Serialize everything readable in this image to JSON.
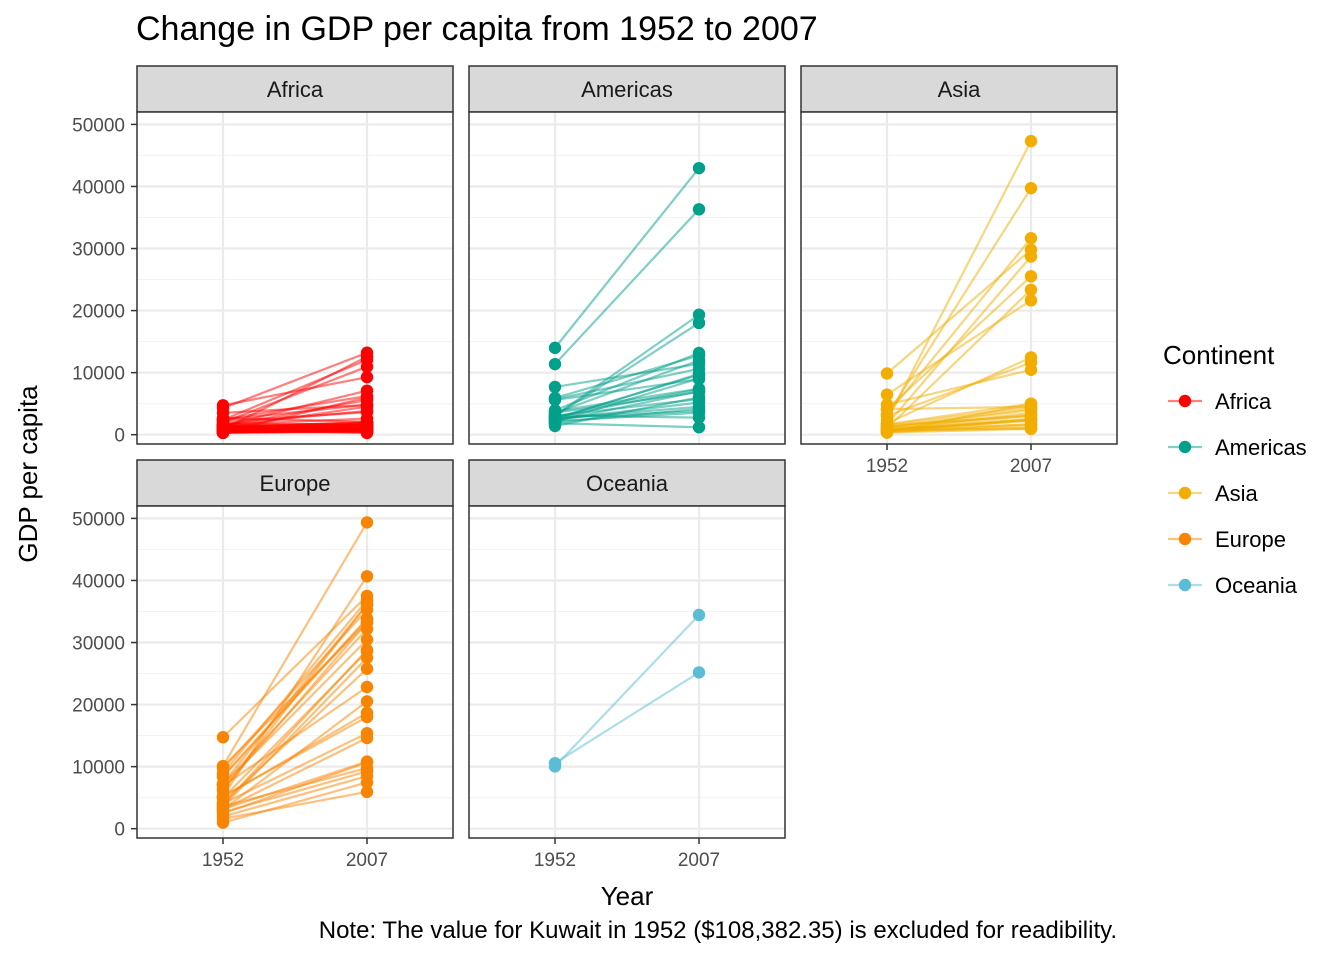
{
  "chart_data": {
    "type": "line",
    "title": "Change in GDP per capita from 1952 to 2007",
    "xlabel": "Year",
    "ylabel": "GDP per capita",
    "caption": "Note: The value for Kuwait in 1952 ($108,382.35) is excluded for readibility.",
    "x_categories": [
      "1952",
      "2007"
    ],
    "ylim": [
      -1500,
      52000
    ],
    "y_ticks": [
      0,
      10000,
      20000,
      30000,
      40000,
      50000
    ],
    "grid": true,
    "legend": {
      "title": "Continent",
      "placement": "right",
      "items": [
        {
          "name": "Africa",
          "color": "#FF0000"
        },
        {
          "name": "Americas",
          "color": "#00A08A"
        },
        {
          "name": "Asia",
          "color": "#F2AD00"
        },
        {
          "name": "Europe",
          "color": "#F98400"
        },
        {
          "name": "Oceania",
          "color": "#5BBCD6"
        }
      ]
    },
    "panels": [
      {
        "name": "Africa",
        "color": "#FF0000",
        "pairs": [
          [
            2449,
            6223
          ],
          [
            3521,
            4797
          ],
          [
            1063,
            1441
          ],
          [
            851,
            12570
          ],
          [
            543,
            1217
          ],
          [
            339,
            430
          ],
          [
            1173,
            2042
          ],
          [
            1071,
            706
          ],
          [
            1179,
            1704
          ],
          [
            1103,
            986
          ],
          [
            781,
            277
          ],
          [
            2126,
            3633
          ],
          [
            1388,
            1545
          ],
          [
            2670,
            2082
          ],
          [
            1419,
            5581
          ],
          [
            375,
            641
          ],
          [
            328,
            690
          ],
          [
            362,
            691
          ],
          [
            4293,
            13206
          ],
          [
            485,
            753
          ],
          [
            911,
            1328
          ],
          [
            510,
            943
          ],
          [
            300,
            579
          ],
          [
            853,
            1463
          ],
          [
            299,
            1569
          ],
          [
            575,
            415
          ],
          [
            2388,
            12057
          ],
          [
            1443,
            1045
          ],
          [
            369,
            759
          ],
          [
            452,
            1042
          ],
          [
            743,
            1803
          ],
          [
            1967,
            10957
          ],
          [
            1688,
            3820
          ],
          [
            469,
            824
          ],
          [
            2424,
            4811
          ],
          [
            762,
            620
          ],
          [
            1077,
            2014
          ],
          [
            493,
            882
          ],
          [
            1840,
            1598
          ],
          [
            880,
            1712
          ],
          [
            1450,
            1560
          ],
          [
            4725,
            9270
          ],
          [
            1615,
            2602
          ],
          [
            1148,
            4513
          ],
          [
            717,
            1107
          ],
          [
            860,
            882
          ],
          [
            1468,
            7093
          ],
          [
            734,
            1056
          ],
          [
            1052,
            1271
          ],
          [
            1407,
            469
          ],
          [
            1454,
            1878
          ],
          [
            407,
            6000
          ]
        ]
      },
      {
        "name": "Americas",
        "color": "#00A08A",
        "pairs": [
          [
            5911,
            12779
          ],
          [
            2677,
            3822
          ],
          [
            2109,
            9066
          ],
          [
            11367,
            36319
          ],
          [
            3940,
            13172
          ],
          [
            2144,
            7007
          ],
          [
            2627,
            9645
          ],
          [
            5587,
            8948
          ],
          [
            1398,
            6025
          ],
          [
            3522,
            6873
          ],
          [
            3048,
            5728
          ],
          [
            2428,
            5186
          ],
          [
            2617,
            4497
          ],
          [
            1840,
            1202
          ],
          [
            2195,
            3548
          ],
          [
            2898,
            7321
          ],
          [
            3478,
            11978
          ],
          [
            3112,
            2749
          ],
          [
            2480,
            9809
          ],
          [
            1952,
            4173
          ],
          [
            3759,
            7409
          ],
          [
            3081,
            19329
          ],
          [
            3023,
            18008
          ],
          [
            13990,
            42952
          ],
          [
            5716,
            10611
          ],
          [
            7690,
            11416
          ]
        ]
      },
      {
        "name": "Asia",
        "color": "#F2AD00",
        "pairs": [
          [
            779,
            975
          ],
          [
            9867,
            29796
          ],
          [
            684,
            1391
          ],
          [
            368,
            1714
          ],
          [
            400,
            4959
          ],
          [
            3054,
            39725
          ],
          [
            547,
            2452
          ],
          [
            750,
            3541
          ],
          [
            3035,
            11606
          ],
          [
            4130,
            4471
          ],
          [
            4087,
            25523
          ],
          [
            3217,
            31656
          ],
          [
            1547,
            4519
          ],
          [
            1088,
            1593
          ],
          [
            1031,
            23348
          ],
          [
            4835,
            10461
          ],
          [
            1831,
            12452
          ],
          [
            786,
            3096
          ],
          [
            331,
            944
          ],
          [
            546,
            1091
          ],
          [
            1688,
            5000
          ],
          [
            685,
            2606
          ],
          [
            1273,
            3190
          ],
          [
            6460,
            21655
          ],
          [
            2315,
            47307
          ],
          [
            1083,
            3970
          ],
          [
            1643,
            28718
          ],
          [
            1207,
            4185
          ],
          [
            758,
            2442
          ],
          [
            605,
            2281
          ],
          [
            1516,
            3025
          ],
          [
            782,
            2281
          ]
        ]
      },
      {
        "name": "Europe",
        "color": "#F98400",
        "pairs": [
          [
            1601,
            5937
          ],
          [
            6137,
            36126
          ],
          [
            8343,
            33693
          ],
          [
            973,
            7446
          ],
          [
            2445,
            10681
          ],
          [
            3119,
            14619
          ],
          [
            6876,
            22833
          ],
          [
            9692,
            35278
          ],
          [
            6425,
            33207
          ],
          [
            7030,
            30470
          ],
          [
            7144,
            32170
          ],
          [
            3531,
            27538
          ],
          [
            5264,
            18009
          ],
          [
            7268,
            36181
          ],
          [
            5211,
            40676
          ],
          [
            4931,
            28570
          ],
          [
            2648,
            9254
          ],
          [
            8942,
            36798
          ],
          [
            10095,
            49357
          ],
          [
            4029,
            15390
          ],
          [
            3068,
            20510
          ],
          [
            3145,
            10808
          ],
          [
            3581,
            9787
          ],
          [
            5074,
            18678
          ],
          [
            4215,
            25768
          ],
          [
            3834,
            28821
          ],
          [
            8528,
            33860
          ],
          [
            14734,
            37506
          ],
          [
            1969,
            8458
          ],
          [
            9980,
            33203
          ]
        ]
      },
      {
        "name": "Oceania",
        "color": "#5BBCD6",
        "pairs": [
          [
            10040,
            34435
          ],
          [
            10557,
            25185
          ]
        ]
      }
    ]
  }
}
